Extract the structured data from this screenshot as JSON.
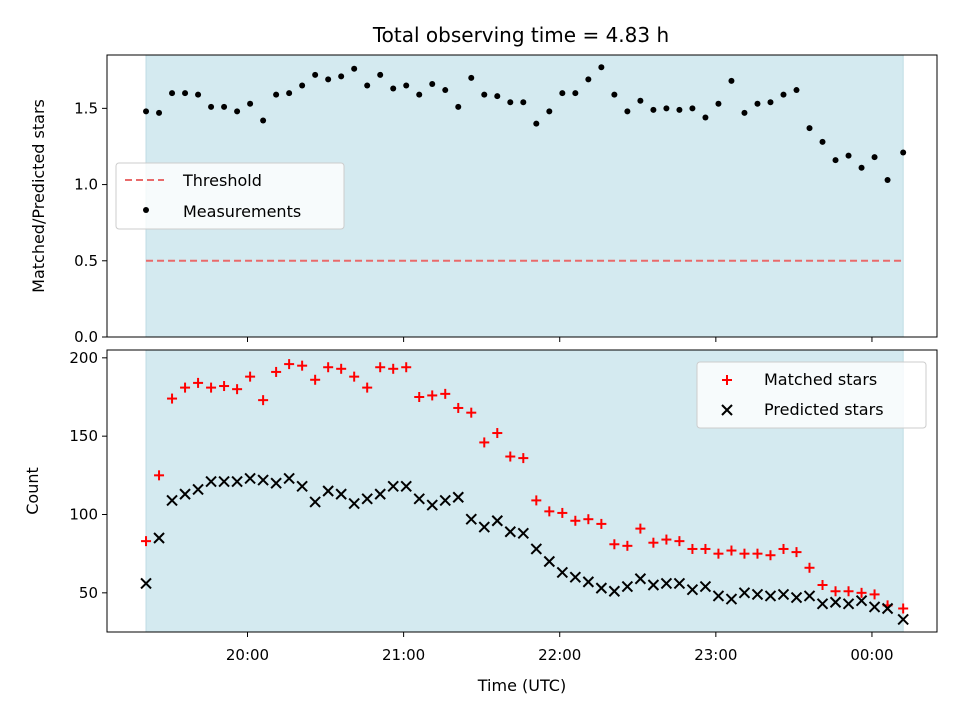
{
  "chart_data": [
    {
      "type": "scatter",
      "title": "Total observing time = 4.83 h",
      "xlabel": "",
      "ylabel": "Matched/Predicted stars",
      "ylim": [
        0,
        1.85
      ],
      "yticks": [
        0.0,
        0.5,
        1.0,
        1.5
      ],
      "ytick_labels": [
        "0.0",
        "0.5",
        "1.0",
        "1.5"
      ],
      "grid": false,
      "legend": "center-left",
      "shaded_span": [
        "19:21",
        "00:12"
      ],
      "shade_color": "#d4eaf0",
      "threshold": {
        "name": "Threshold",
        "value": 0.5,
        "color": "#e96a6a"
      },
      "series": [
        {
          "name": "Measurements",
          "color": "#000000",
          "marker": "dot",
          "x": [
            "19:21",
            "19:26",
            "19:31",
            "19:36",
            "19:41",
            "19:46",
            "19:51",
            "19:56",
            "20:01",
            "20:06",
            "20:11",
            "20:16",
            "20:21",
            "20:26",
            "20:31",
            "20:36",
            "20:41",
            "20:46",
            "20:51",
            "20:56",
            "21:01",
            "21:06",
            "21:11",
            "21:16",
            "21:21",
            "21:26",
            "21:31",
            "21:36",
            "21:41",
            "21:46",
            "21:51",
            "21:56",
            "22:01",
            "22:06",
            "22:11",
            "22:16",
            "22:21",
            "22:26",
            "22:31",
            "22:36",
            "22:41",
            "22:46",
            "22:51",
            "22:56",
            "23:01",
            "23:06",
            "23:11",
            "23:16",
            "23:21",
            "23:26",
            "23:31",
            "23:36",
            "23:41",
            "23:46",
            "23:51",
            "23:56",
            "00:01",
            "00:06",
            "00:12"
          ],
          "y": [
            1.48,
            1.47,
            1.6,
            1.6,
            1.59,
            1.51,
            1.51,
            1.48,
            1.53,
            1.42,
            1.59,
            1.6,
            1.65,
            1.72,
            1.69,
            1.71,
            1.76,
            1.65,
            1.72,
            1.63,
            1.65,
            1.59,
            1.66,
            1.62,
            1.51,
            1.7,
            1.59,
            1.58,
            1.54,
            1.54,
            1.4,
            1.48,
            1.6,
            1.6,
            1.69,
            1.77,
            1.59,
            1.48,
            1.55,
            1.49,
            1.5,
            1.49,
            1.5,
            1.44,
            1.53,
            1.68,
            1.47,
            1.53,
            1.54,
            1.59,
            1.62,
            1.37,
            1.28,
            1.16,
            1.19,
            1.11,
            1.18,
            1.03,
            1.21
          ]
        }
      ]
    },
    {
      "type": "scatter",
      "title": "",
      "xlabel": "Time (UTC)",
      "ylabel": "Count",
      "ylim": [
        25,
        205
      ],
      "yticks": [
        50,
        100,
        150,
        200
      ],
      "ytick_labels": [
        "50",
        "100",
        "150",
        "200"
      ],
      "xlim": [
        "19:06",
        "00:25"
      ],
      "xticks": [
        "20:00",
        "21:00",
        "22:00",
        "23:00",
        "00:00"
      ],
      "xtick_labels": [
        "20:00",
        "21:00",
        "22:00",
        "23:00",
        "00:00"
      ],
      "grid": false,
      "legend": "top-right",
      "shaded_span": [
        "19:21",
        "00:12"
      ],
      "shade_color": "#d4eaf0",
      "series": [
        {
          "name": "Matched stars",
          "color": "#ff0000",
          "marker": "plus",
          "x": [
            "19:21",
            "19:26",
            "19:31",
            "19:36",
            "19:41",
            "19:46",
            "19:51",
            "19:56",
            "20:01",
            "20:06",
            "20:11",
            "20:16",
            "20:21",
            "20:26",
            "20:31",
            "20:36",
            "20:41",
            "20:46",
            "20:51",
            "20:56",
            "21:01",
            "21:06",
            "21:11",
            "21:16",
            "21:21",
            "21:26",
            "21:31",
            "21:36",
            "21:41",
            "21:46",
            "21:51",
            "21:56",
            "22:01",
            "22:06",
            "22:11",
            "22:16",
            "22:21",
            "22:26",
            "22:31",
            "22:36",
            "22:41",
            "22:46",
            "22:51",
            "22:56",
            "23:01",
            "23:06",
            "23:11",
            "23:16",
            "23:21",
            "23:26",
            "23:31",
            "23:36",
            "23:41",
            "23:46",
            "23:51",
            "23:56",
            "00:01",
            "00:06",
            "00:12"
          ],
          "y": [
            83,
            125,
            174,
            181,
            184,
            181,
            182,
            180,
            188,
            173,
            191,
            196,
            195,
            186,
            194,
            193,
            188,
            181,
            194,
            193,
            194,
            175,
            176,
            177,
            168,
            165,
            146,
            152,
            137,
            136,
            109,
            102,
            101,
            96,
            97,
            94,
            81,
            80,
            91,
            82,
            84,
            83,
            78,
            78,
            75,
            77,
            75,
            75,
            74,
            78,
            76,
            66,
            55,
            51,
            51,
            50,
            49,
            42,
            40
          ]
        },
        {
          "name": "Predicted stars",
          "color": "#000000",
          "marker": "cross",
          "x": [
            "19:21",
            "19:26",
            "19:31",
            "19:36",
            "19:41",
            "19:46",
            "19:51",
            "19:56",
            "20:01",
            "20:06",
            "20:11",
            "20:16",
            "20:21",
            "20:26",
            "20:31",
            "20:36",
            "20:41",
            "20:46",
            "20:51",
            "20:56",
            "21:01",
            "21:06",
            "21:11",
            "21:16",
            "21:21",
            "21:26",
            "21:31",
            "21:36",
            "21:41",
            "21:46",
            "21:51",
            "21:56",
            "22:01",
            "22:06",
            "22:11",
            "22:16",
            "22:21",
            "22:26",
            "22:31",
            "22:36",
            "22:41",
            "22:46",
            "22:51",
            "22:56",
            "23:01",
            "23:06",
            "23:11",
            "23:16",
            "23:21",
            "23:26",
            "23:31",
            "23:36",
            "23:41",
            "23:46",
            "23:51",
            "23:56",
            "00:01",
            "00:06",
            "00:12"
          ],
          "y": [
            56,
            85,
            109,
            113,
            116,
            121,
            121,
            121,
            123,
            122,
            120,
            123,
            118,
            108,
            115,
            113,
            107,
            110,
            113,
            118,
            118,
            110,
            106,
            109,
            111,
            97,
            92,
            96,
            89,
            88,
            78,
            70,
            63,
            60,
            57,
            53,
            51,
            54,
            59,
            55,
            56,
            56,
            52,
            54,
            48,
            46,
            50,
            49,
            48,
            49,
            47,
            48,
            43,
            44,
            43,
            45,
            41,
            40,
            33
          ]
        }
      ]
    }
  ]
}
